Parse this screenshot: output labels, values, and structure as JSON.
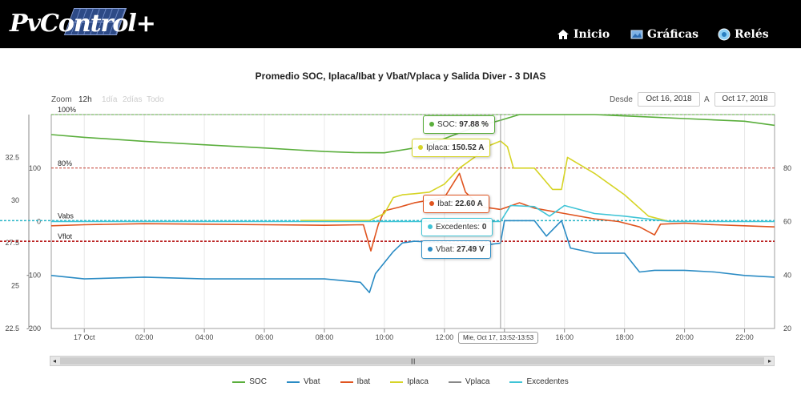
{
  "header": {
    "logo_text": "PvControl+",
    "nav": [
      {
        "label": "Inicio",
        "icon": "home-icon"
      },
      {
        "label": "Gráficas",
        "icon": "chart-image-icon"
      },
      {
        "label": "Relés",
        "icon": "relay-icon"
      }
    ]
  },
  "controls": {
    "zoom_label": "Zoom",
    "zoom_buttons": [
      "12h",
      "1día",
      "2días",
      "Todo"
    ],
    "desde_label": "Desde",
    "desde_value": "Oct 16, 2018",
    "a_label": "A",
    "a_value": "Oct 17, 2018"
  },
  "navigator": {
    "grip": "|||"
  },
  "tooltips": {
    "soc": {
      "label": "SOC:",
      "value": "97.88 %"
    },
    "iplaca": {
      "label": "Iplaca:",
      "value": "150.52 A"
    },
    "ibat": {
      "label": "Ibat:",
      "value": "22.60 A"
    },
    "excedentes": {
      "label": "Excedentes:",
      "value": "0"
    },
    "vbat": {
      "label": "Vbat:",
      "value": "27.49 V"
    },
    "time": "Mie, Oct 17, 13:52-13:53"
  },
  "chart_data": {
    "type": "line",
    "title": "Promedio SOC, Iplaca/Ibat y Vbat/Vplaca y Salida Diver - 3 DIAS",
    "x_ticks": [
      "17 Oct",
      "02:00",
      "04:00",
      "06:00",
      "08:00",
      "10:00",
      "12:00",
      "14:00",
      "16:00",
      "18:00",
      "20:00",
      "22:00"
    ],
    "x_range_hours": [
      -1.1,
      23.0
    ],
    "y_axes": {
      "voltage": {
        "ticks": [
          22.5,
          25,
          27.5,
          30,
          32.5
        ],
        "range": [
          22.5,
          35
        ]
      },
      "current": {
        "ticks": [
          -200,
          -100,
          0,
          100
        ],
        "range": [
          -200,
          200
        ]
      },
      "soc": {
        "ticks": [
          20,
          40,
          60,
          80
        ],
        "range": [
          20,
          100
        ]
      }
    },
    "plot_lines": [
      {
        "label": "100%",
        "axis": "soc",
        "value": 100,
        "color": "#5aae3c"
      },
      {
        "label": "80%",
        "axis": "soc",
        "value": 80,
        "color": "#c0392b"
      },
      {
        "label": "Vabs",
        "axis": "voltage",
        "value": 28.8,
        "color": "#2bb6c9"
      },
      {
        "label": "Vflot",
        "axis": "voltage",
        "value": 27.6,
        "color": "#b00000"
      }
    ],
    "series": [
      {
        "name": "SOC",
        "color": "#5aae3c",
        "axis": "soc",
        "x": [
          -1.1,
          0,
          2,
          4,
          6,
          8,
          9,
          10,
          11,
          12,
          13,
          13.87,
          14.5,
          16,
          17,
          18,
          19,
          20,
          21,
          22,
          23
        ],
        "y": [
          92.5,
          91.5,
          90,
          88.7,
          87.5,
          86.2,
          85.8,
          85.7,
          87.5,
          91,
          95.3,
          97.88,
          100,
          100,
          100,
          99.5,
          99,
          98.5,
          98,
          97.5,
          96
        ]
      },
      {
        "name": "Vbat",
        "color": "#2a8bc4",
        "axis": "voltage",
        "x": [
          -1.1,
          0,
          2,
          4,
          6,
          8,
          9.2,
          9.5,
          9.7,
          10.3,
          10.6,
          11,
          12,
          13,
          13.87,
          14,
          15,
          15.4,
          15.9,
          16.2,
          17,
          18,
          18.5,
          19,
          20,
          21,
          22,
          23
        ],
        "y": [
          25.6,
          25.4,
          25.5,
          25.4,
          25.4,
          25.4,
          25.2,
          24.6,
          25.7,
          27.0,
          27.5,
          27.6,
          27.5,
          27.3,
          27.49,
          28.8,
          28.8,
          27.9,
          28.8,
          27.2,
          26.9,
          26.9,
          25.8,
          25.9,
          25.9,
          25.8,
          25.6,
          25.5
        ]
      },
      {
        "name": "Ibat",
        "color": "#e0541f",
        "axis": "current",
        "x": [
          -1.1,
          0,
          2,
          4,
          6,
          8,
          9.3,
          9.55,
          9.8,
          10,
          10.5,
          11,
          12,
          12.5,
          12.7,
          13.2,
          13.87,
          14.5,
          15,
          16,
          17,
          17.8,
          18.5,
          19.0,
          19.2,
          20,
          21,
          22,
          23
        ],
        "y": [
          -8,
          -6,
          -4,
          -5,
          -6,
          -7,
          -6,
          -55,
          -5,
          20,
          27,
          35,
          45,
          90,
          55,
          28,
          22.6,
          35,
          25,
          15,
          5,
          0,
          -10,
          -25,
          -5,
          -3,
          -6,
          -8,
          -10
        ]
      },
      {
        "name": "Iplaca",
        "color": "#d6d426",
        "axis": "current",
        "x": [
          7.2,
          9.5,
          10,
          10.3,
          10.6,
          11,
          11.5,
          12,
          12.5,
          13,
          13.4,
          13.87,
          14.1,
          14.3,
          15,
          15.6,
          15.9,
          16.1,
          17,
          18,
          18.8,
          19.5
        ],
        "y": [
          2,
          2,
          15,
          45,
          50,
          52,
          55,
          70,
          100,
          120,
          140,
          150.52,
          140,
          100,
          100,
          60,
          60,
          120,
          90,
          50,
          10,
          0
        ]
      },
      {
        "name": "Vplaca",
        "color": "#888888",
        "axis": "voltage",
        "x": [],
        "y": []
      },
      {
        "name": "Excedentes",
        "color": "#3fc4d6",
        "axis": "current",
        "x": [
          -1.1,
          13.0,
          13.87,
          14.2,
          15,
          15.5,
          16.0,
          17,
          18,
          19.5,
          23
        ],
        "y": [
          0,
          0,
          0,
          30,
          28,
          10,
          30,
          15,
          10,
          0,
          0
        ]
      }
    ]
  }
}
